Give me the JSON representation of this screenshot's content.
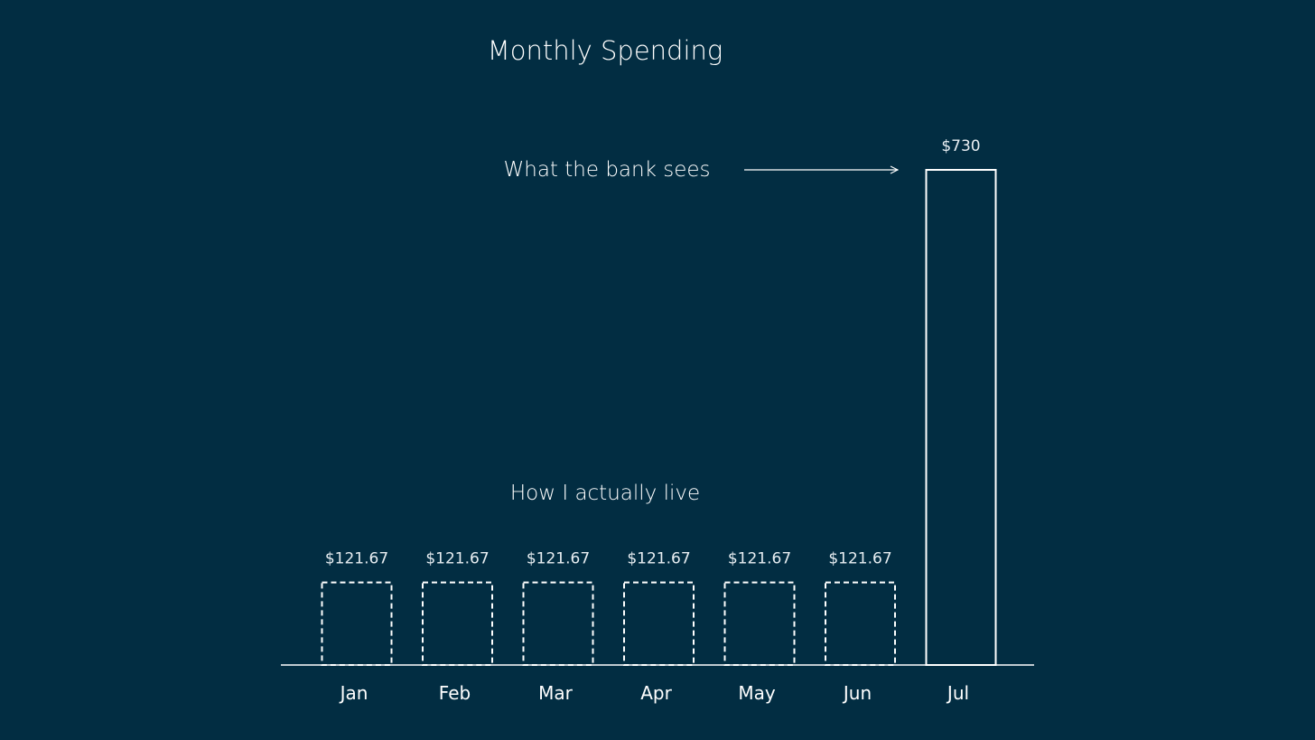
{
  "chart_data": {
    "type": "bar",
    "title": "Monthly Spending",
    "categories": [
      "Jan",
      "Feb",
      "Mar",
      "Apr",
      "May",
      "Jun",
      "Jul"
    ],
    "values": [
      121.67,
      121.67,
      121.67,
      121.67,
      121.67,
      121.67,
      730
    ],
    "data_labels": [
      "$121.67",
      "$121.67",
      "$121.67",
      "$121.67",
      "$121.67",
      "$121.67",
      "$730"
    ],
    "bar_styles": [
      "dashed",
      "dashed",
      "dashed",
      "dashed",
      "dashed",
      "dashed",
      "solid"
    ],
    "ylim": [
      0,
      730
    ],
    "grid": false,
    "annotations": [
      {
        "text": "What the bank sees",
        "target": "Jul",
        "arrow": true
      },
      {
        "text": "How I actually live",
        "target": "Jan-Jun",
        "arrow": false
      }
    ],
    "colors": {
      "background": "#022d42",
      "stroke": "#ffffff",
      "text": "#ffffff"
    }
  }
}
